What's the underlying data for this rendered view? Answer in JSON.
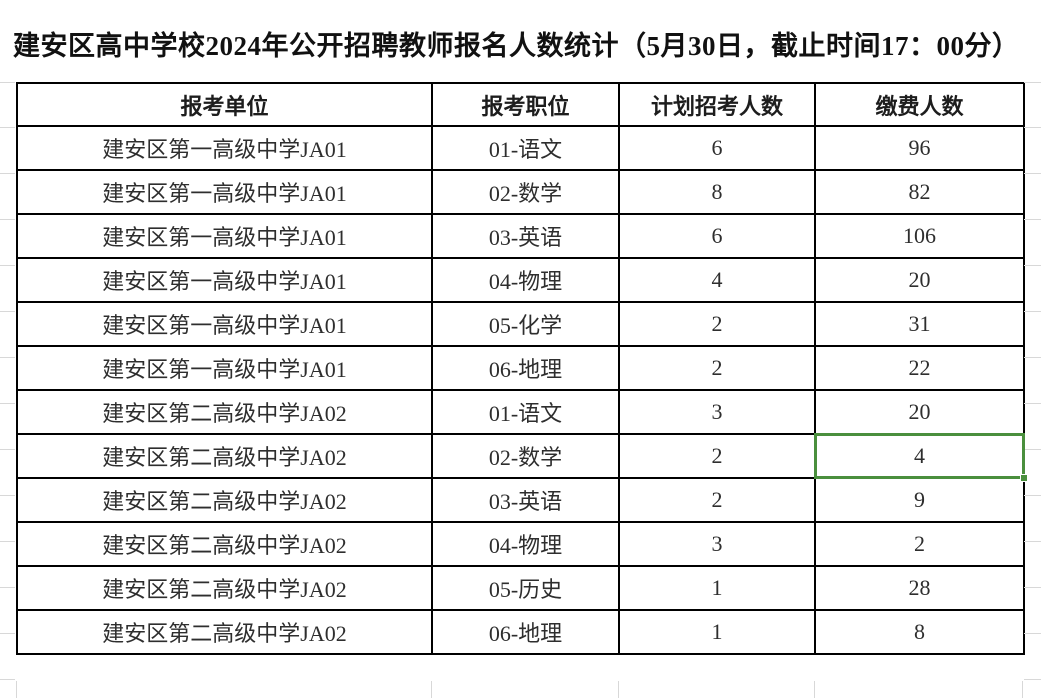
{
  "title": "建安区高中学校2024年公开招聘教师报名人数统计（5月30日，截止时间17：00分）",
  "table": {
    "headers": [
      "报考单位",
      "报考职位",
      "计划招考人数",
      "缴费人数"
    ],
    "rows": [
      [
        "建安区第一高级中学JA01",
        "01-语文",
        "6",
        "96"
      ],
      [
        "建安区第一高级中学JA01",
        "02-数学",
        "8",
        "82"
      ],
      [
        "建安区第一高级中学JA01",
        "03-英语",
        "6",
        "106"
      ],
      [
        "建安区第一高级中学JA01",
        "04-物理",
        "4",
        "20"
      ],
      [
        "建安区第一高级中学JA01",
        "05-化学",
        "2",
        "31"
      ],
      [
        "建安区第一高级中学JA01",
        "06-地理",
        "2",
        "22"
      ],
      [
        "建安区第二高级中学JA02",
        "01-语文",
        "3",
        "20"
      ],
      [
        "建安区第二高级中学JA02",
        "02-数学",
        "2",
        "4"
      ],
      [
        "建安区第二高级中学JA02",
        "03-英语",
        "2",
        "9"
      ],
      [
        "建安区第二高级中学JA02",
        "04-物理",
        "3",
        "2"
      ],
      [
        "建安区第二高级中学JA02",
        "05-历史",
        "1",
        "28"
      ],
      [
        "建安区第二高级中学JA02",
        "06-地理",
        "1",
        "8"
      ]
    ],
    "selected_cell": {
      "row_index": 7,
      "col_index": 3,
      "value": "4"
    }
  },
  "colors": {
    "selection_green": "#4a8f3d",
    "grid_line": "#d8d8d8",
    "table_border": "#000000",
    "text": "#2e2e2e"
  }
}
